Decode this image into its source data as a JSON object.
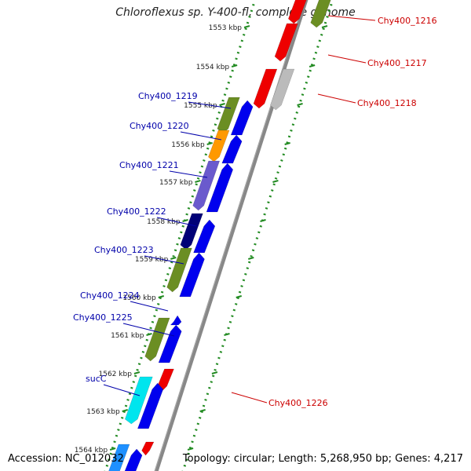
{
  "title": "Chloroflexus sp. Y-400-fl, complete genome",
  "accession": "Accession: NC_012032",
  "topology": "Topology: circular; Length: 5,268,950 bp; Genes: 4,217",
  "colors": {
    "backbone": "#888888",
    "dotted_track": "#228B22",
    "forward_gene": "#0000ee",
    "reverse_gene": "#ee0000",
    "label_forward": "#0000aa",
    "label_reverse": "#cc0000",
    "olive": "#6b8e23",
    "orange": "#ff9900",
    "slate": "#6a5acd",
    "navy": "#000077",
    "cyan": "#00e5ee",
    "gray": "#bbbbbb",
    "deepskyblue": "#1e90ff"
  },
  "kbp_ticks": [
    "1553 kbp",
    "1554 kbp",
    "1555 kbp",
    "1556 kbp",
    "1557 kbp",
    "1558 kbp",
    "1559 kbp",
    "1560 kbp",
    "1561 kbp",
    "1562 kbp",
    "1563 kbp",
    "1564 kbp"
  ],
  "labels_left": [
    "Chy400_1219",
    "Chy400_1220",
    "Chy400_1221",
    "Chy400_1222",
    "Chy400_1223",
    "Chy400_1224",
    "Chy400_1225",
    "sucC"
  ],
  "labels_right": [
    "Chy400_1216",
    "Chy400_1217",
    "Chy400_1218",
    "Chy400_1226"
  ]
}
